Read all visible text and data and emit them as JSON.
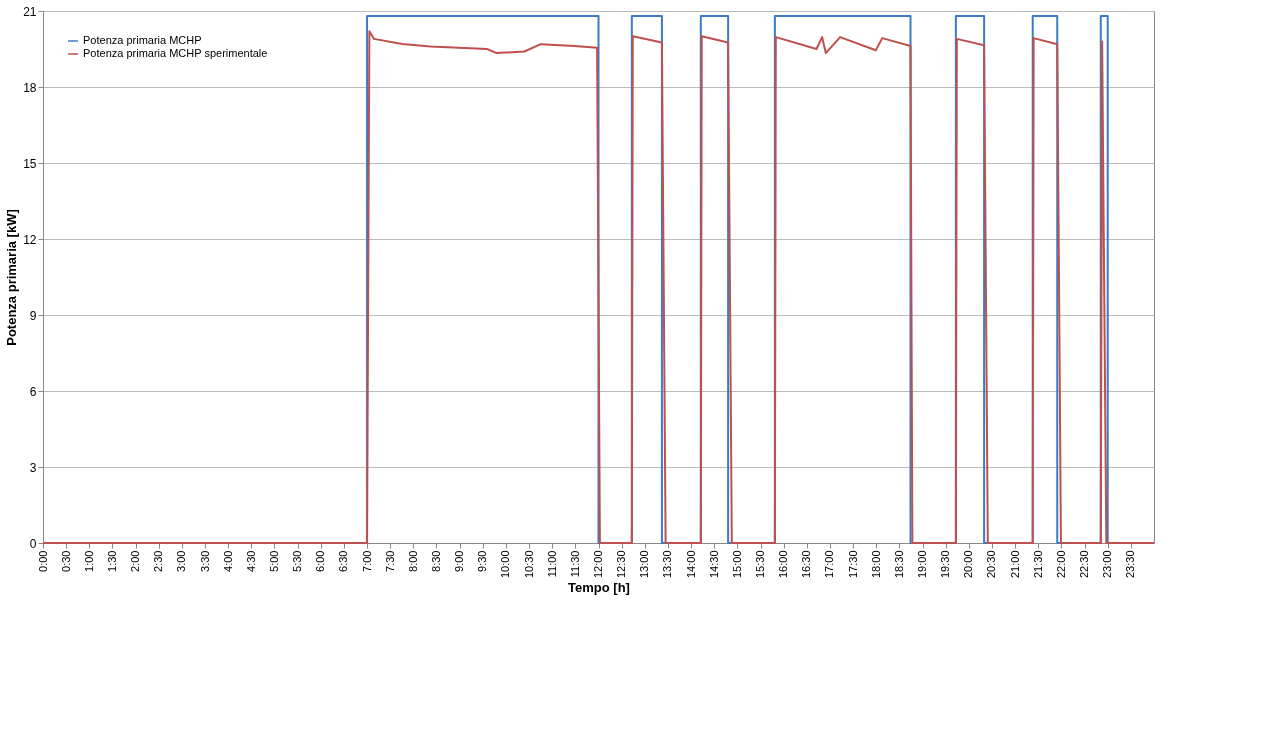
{
  "chart_data": {
    "type": "line",
    "xlabel": "Tempo [h]",
    "ylabel": "Potenza primaria [kW]",
    "xlim": [
      0,
      24
    ],
    "ylim": [
      0,
      21
    ],
    "yticks": [
      0,
      3,
      6,
      9,
      12,
      15,
      18,
      21
    ],
    "xticks": [
      {
        "value": 0,
        "label": "0:00"
      },
      {
        "value": 0.5,
        "label": "0:30"
      },
      {
        "value": 1,
        "label": "1:00"
      },
      {
        "value": 1.5,
        "label": "1:30"
      },
      {
        "value": 2,
        "label": "2:00"
      },
      {
        "value": 2.5,
        "label": "2:30"
      },
      {
        "value": 3,
        "label": "3:00"
      },
      {
        "value": 3.5,
        "label": "3:30"
      },
      {
        "value": 4,
        "label": "4:00"
      },
      {
        "value": 4.5,
        "label": "4:30"
      },
      {
        "value": 5,
        "label": "5:00"
      },
      {
        "value": 5.5,
        "label": "5:30"
      },
      {
        "value": 6,
        "label": "6:00"
      },
      {
        "value": 6.5,
        "label": "6:30"
      },
      {
        "value": 7,
        "label": "7:00"
      },
      {
        "value": 7.5,
        "label": "7:30"
      },
      {
        "value": 8,
        "label": "8:00"
      },
      {
        "value": 8.5,
        "label": "8:30"
      },
      {
        "value": 9,
        "label": "9:00"
      },
      {
        "value": 9.5,
        "label": "9:30"
      },
      {
        "value": 10,
        "label": "10:00"
      },
      {
        "value": 10.5,
        "label": "10:30"
      },
      {
        "value": 11,
        "label": "11:00"
      },
      {
        "value": 11.5,
        "label": "11:30"
      },
      {
        "value": 12,
        "label": "12:00"
      },
      {
        "value": 12.5,
        "label": "12:30"
      },
      {
        "value": 13,
        "label": "13:00"
      },
      {
        "value": 13.5,
        "label": "13:30"
      },
      {
        "value": 14,
        "label": "14:00"
      },
      {
        "value": 14.5,
        "label": "14:30"
      },
      {
        "value": 15,
        "label": "15:00"
      },
      {
        "value": 15.5,
        "label": "15:30"
      },
      {
        "value": 16,
        "label": "16:00"
      },
      {
        "value": 16.5,
        "label": "16:30"
      },
      {
        "value": 17,
        "label": "17:00"
      },
      {
        "value": 17.5,
        "label": "17:30"
      },
      {
        "value": 18,
        "label": "18:00"
      },
      {
        "value": 18.5,
        "label": "18:30"
      },
      {
        "value": 19,
        "label": "19:00"
      },
      {
        "value": 19.5,
        "label": "19:30"
      },
      {
        "value": 20,
        "label": "20:00"
      },
      {
        "value": 20.5,
        "label": "20:30"
      },
      {
        "value": 21,
        "label": "21:00"
      },
      {
        "value": 21.5,
        "label": "21:30"
      },
      {
        "value": 22,
        "label": "22:00"
      },
      {
        "value": 22.5,
        "label": "22:30"
      },
      {
        "value": 23,
        "label": "23:00"
      },
      {
        "value": 23.5,
        "label": "23:30"
      }
    ],
    "grid": "y",
    "legend": "top left",
    "marker": "none",
    "line_style": "solid",
    "series": [
      {
        "name": "Potenza primaria MCHP",
        "color": "#3b7cc4",
        "x": [
          0,
          7.0,
          7.0,
          12.0,
          12.0,
          12.72,
          12.72,
          13.37,
          13.37,
          14.21,
          14.21,
          14.8,
          14.8,
          15.81,
          15.81,
          18.74,
          18.74,
          19.72,
          19.72,
          20.33,
          20.33,
          21.38,
          21.38,
          21.91,
          21.91,
          22.85,
          22.85,
          23.0,
          23.0,
          24
        ],
        "values": [
          0,
          0,
          20.8,
          20.8,
          0,
          0,
          20.8,
          20.8,
          0,
          0,
          20.8,
          20.8,
          0,
          0,
          20.8,
          20.8,
          0,
          0,
          20.8,
          20.8,
          0,
          0,
          20.8,
          20.8,
          0,
          0,
          20.8,
          20.8,
          0,
          0
        ]
      },
      {
        "name": "Potenza primaria MCHP sperimentale",
        "color": "#c0504d",
        "x": [
          0,
          7.0,
          7.05,
          7.15,
          7.76,
          8.37,
          9.59,
          9.8,
          10.4,
          10.75,
          11.48,
          11.97,
          12.03,
          12.72,
          12.74,
          13.37,
          13.45,
          14.21,
          14.23,
          14.8,
          14.88,
          15.81,
          15.83,
          16.71,
          16.83,
          16.91,
          17.22,
          17.99,
          18.13,
          18.74,
          18.78,
          19.72,
          19.74,
          20.33,
          20.41,
          21.38,
          21.4,
          21.91,
          21.99,
          22.85,
          22.88,
          22.97,
          24
        ],
        "values": [
          0,
          0,
          20.2,
          19.9,
          19.7,
          19.6,
          19.5,
          19.34,
          19.4,
          19.69,
          19.62,
          19.55,
          0,
          0,
          20.0,
          19.76,
          0,
          0,
          20.0,
          19.76,
          0,
          0,
          19.97,
          19.5,
          19.97,
          19.34,
          19.97,
          19.45,
          19.93,
          19.62,
          0,
          0,
          19.9,
          19.65,
          0,
          0,
          19.93,
          19.69,
          0,
          0,
          19.8,
          0,
          0
        ]
      }
    ]
  }
}
